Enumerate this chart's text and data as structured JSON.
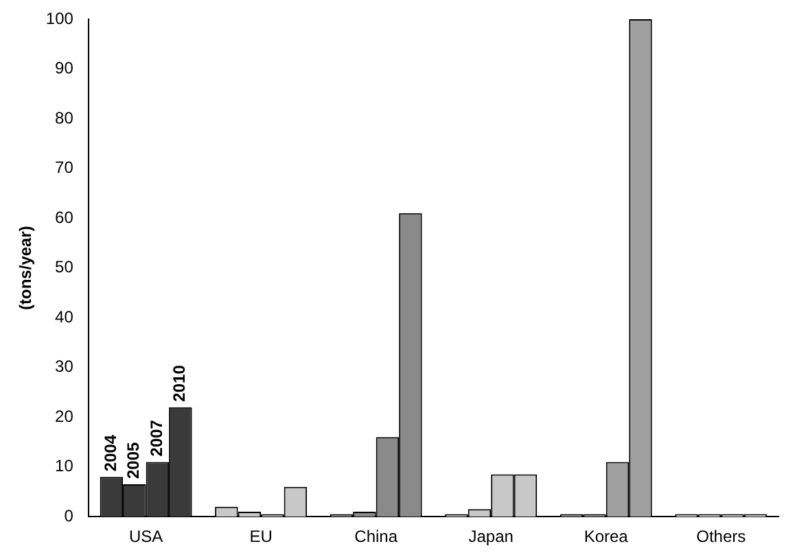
{
  "chart_data": {
    "type": "bar",
    "ylabel": "(tons/year)",
    "categories": [
      "USA",
      "EU",
      "China",
      "Japan",
      "Korea",
      "Others"
    ],
    "series": [
      {
        "name": "2004",
        "colors": [
          "#3a3a3a",
          "#c8c8c8",
          "#8a8a8a",
          "#c8c8c8",
          "#a0a0a0",
          "#f0f0f0"
        ],
        "values": [
          8,
          2,
          0.5,
          0.5,
          0.5,
          0.5
        ]
      },
      {
        "name": "2005",
        "colors": [
          "#3a3a3a",
          "#c8c8c8",
          "#8a8a8a",
          "#c8c8c8",
          "#a0a0a0",
          "#f0f0f0"
        ],
        "values": [
          6.5,
          1,
          1,
          1.5,
          0.5,
          0.5
        ]
      },
      {
        "name": "2007",
        "colors": [
          "#3a3a3a",
          "#c8c8c8",
          "#8a8a8a",
          "#c8c8c8",
          "#a0a0a0",
          "#f0f0f0"
        ],
        "values": [
          11,
          0.5,
          16,
          8.5,
          11,
          0.5
        ]
      },
      {
        "name": "2010",
        "colors": [
          "#3a3a3a",
          "#c8c8c8",
          "#8a8a8a",
          "#c8c8c8",
          "#a0a0a0",
          "#f0f0f0"
        ],
        "values": [
          22,
          6,
          61,
          8.5,
          100,
          0.5
        ]
      }
    ],
    "ylim": [
      0,
      100
    ],
    "yticks": [
      0,
      10,
      20,
      30,
      40,
      50,
      60,
      70,
      80,
      90,
      100
    ],
    "grid": false,
    "legend": false
  }
}
